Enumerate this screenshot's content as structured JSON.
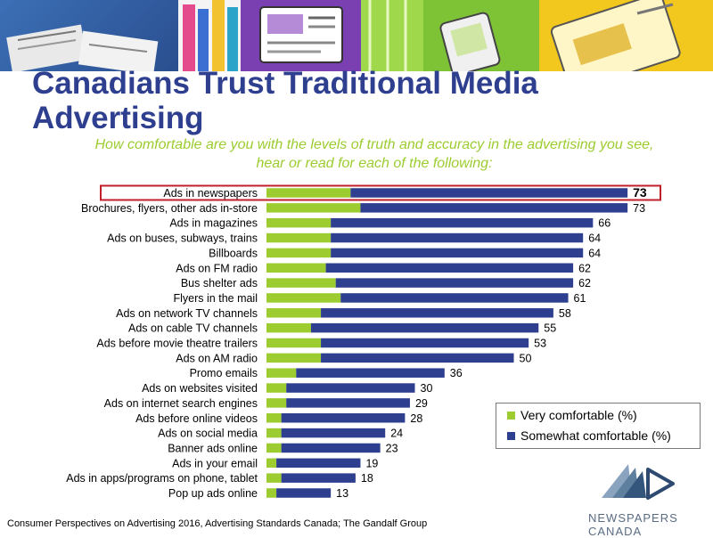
{
  "title": "Canadians Trust Traditional Media Advertising",
  "subtitle": "How comfortable are you with the levels of truth and accuracy in the advertising you see, hear or read for each of the following:",
  "source": "Consumer Perspectives on Advertising 2016, Advertising Standards Canada; The Gandalf Group",
  "logo_text": "NEWSPAPERS CANADA",
  "colors": {
    "very": "#9ccc2f",
    "somewhat": "#2e3f8f",
    "highlight": "#c0202a",
    "title": "#2f3f8f"
  },
  "legend": {
    "very_label": "Very comfortable (%)",
    "somewhat_label": "Somewhat comfortable (%)"
  },
  "chart_data": {
    "type": "bar",
    "orientation": "horizontal",
    "stacked": true,
    "highlighted_category": "Ads in newspapers",
    "categories": [
      "Ads in newspapers",
      "Brochures, flyers, other ads in-store",
      "Ads in magazines",
      "Ads on buses, subways, trains",
      "Billboards",
      "Ads on FM radio",
      "Bus shelter ads",
      "Flyers in the mail",
      "Ads on network TV channels",
      "Ads on cable TV channels",
      "Ads before movie theatre trailers",
      "Ads on AM radio",
      "Promo emails",
      "Ads on websites visited",
      "Ads on internet search engines",
      "Ads before online videos",
      "Ads on social media",
      "Banner ads online",
      "Ads in your email",
      "Ads in apps/programs on phone, tablet",
      "Pop up ads online"
    ],
    "totals": [
      73,
      73,
      66,
      64,
      64,
      62,
      62,
      61,
      58,
      55,
      53,
      50,
      36,
      30,
      29,
      28,
      24,
      23,
      19,
      18,
      13
    ],
    "series": [
      {
        "name": "Very comfortable (%)",
        "values": [
          17,
          19,
          13,
          13,
          13,
          12,
          14,
          15,
          11,
          9,
          11,
          11,
          6,
          4,
          4,
          3,
          3,
          3,
          2,
          3,
          2
        ]
      },
      {
        "name": "Somewhat comfortable (%)",
        "values": [
          56,
          54,
          53,
          51,
          51,
          50,
          48,
          46,
          47,
          46,
          42,
          39,
          30,
          26,
          25,
          25,
          21,
          20,
          17,
          15,
          11
        ]
      }
    ],
    "legend_position": "bottom-right",
    "grid": false
  }
}
